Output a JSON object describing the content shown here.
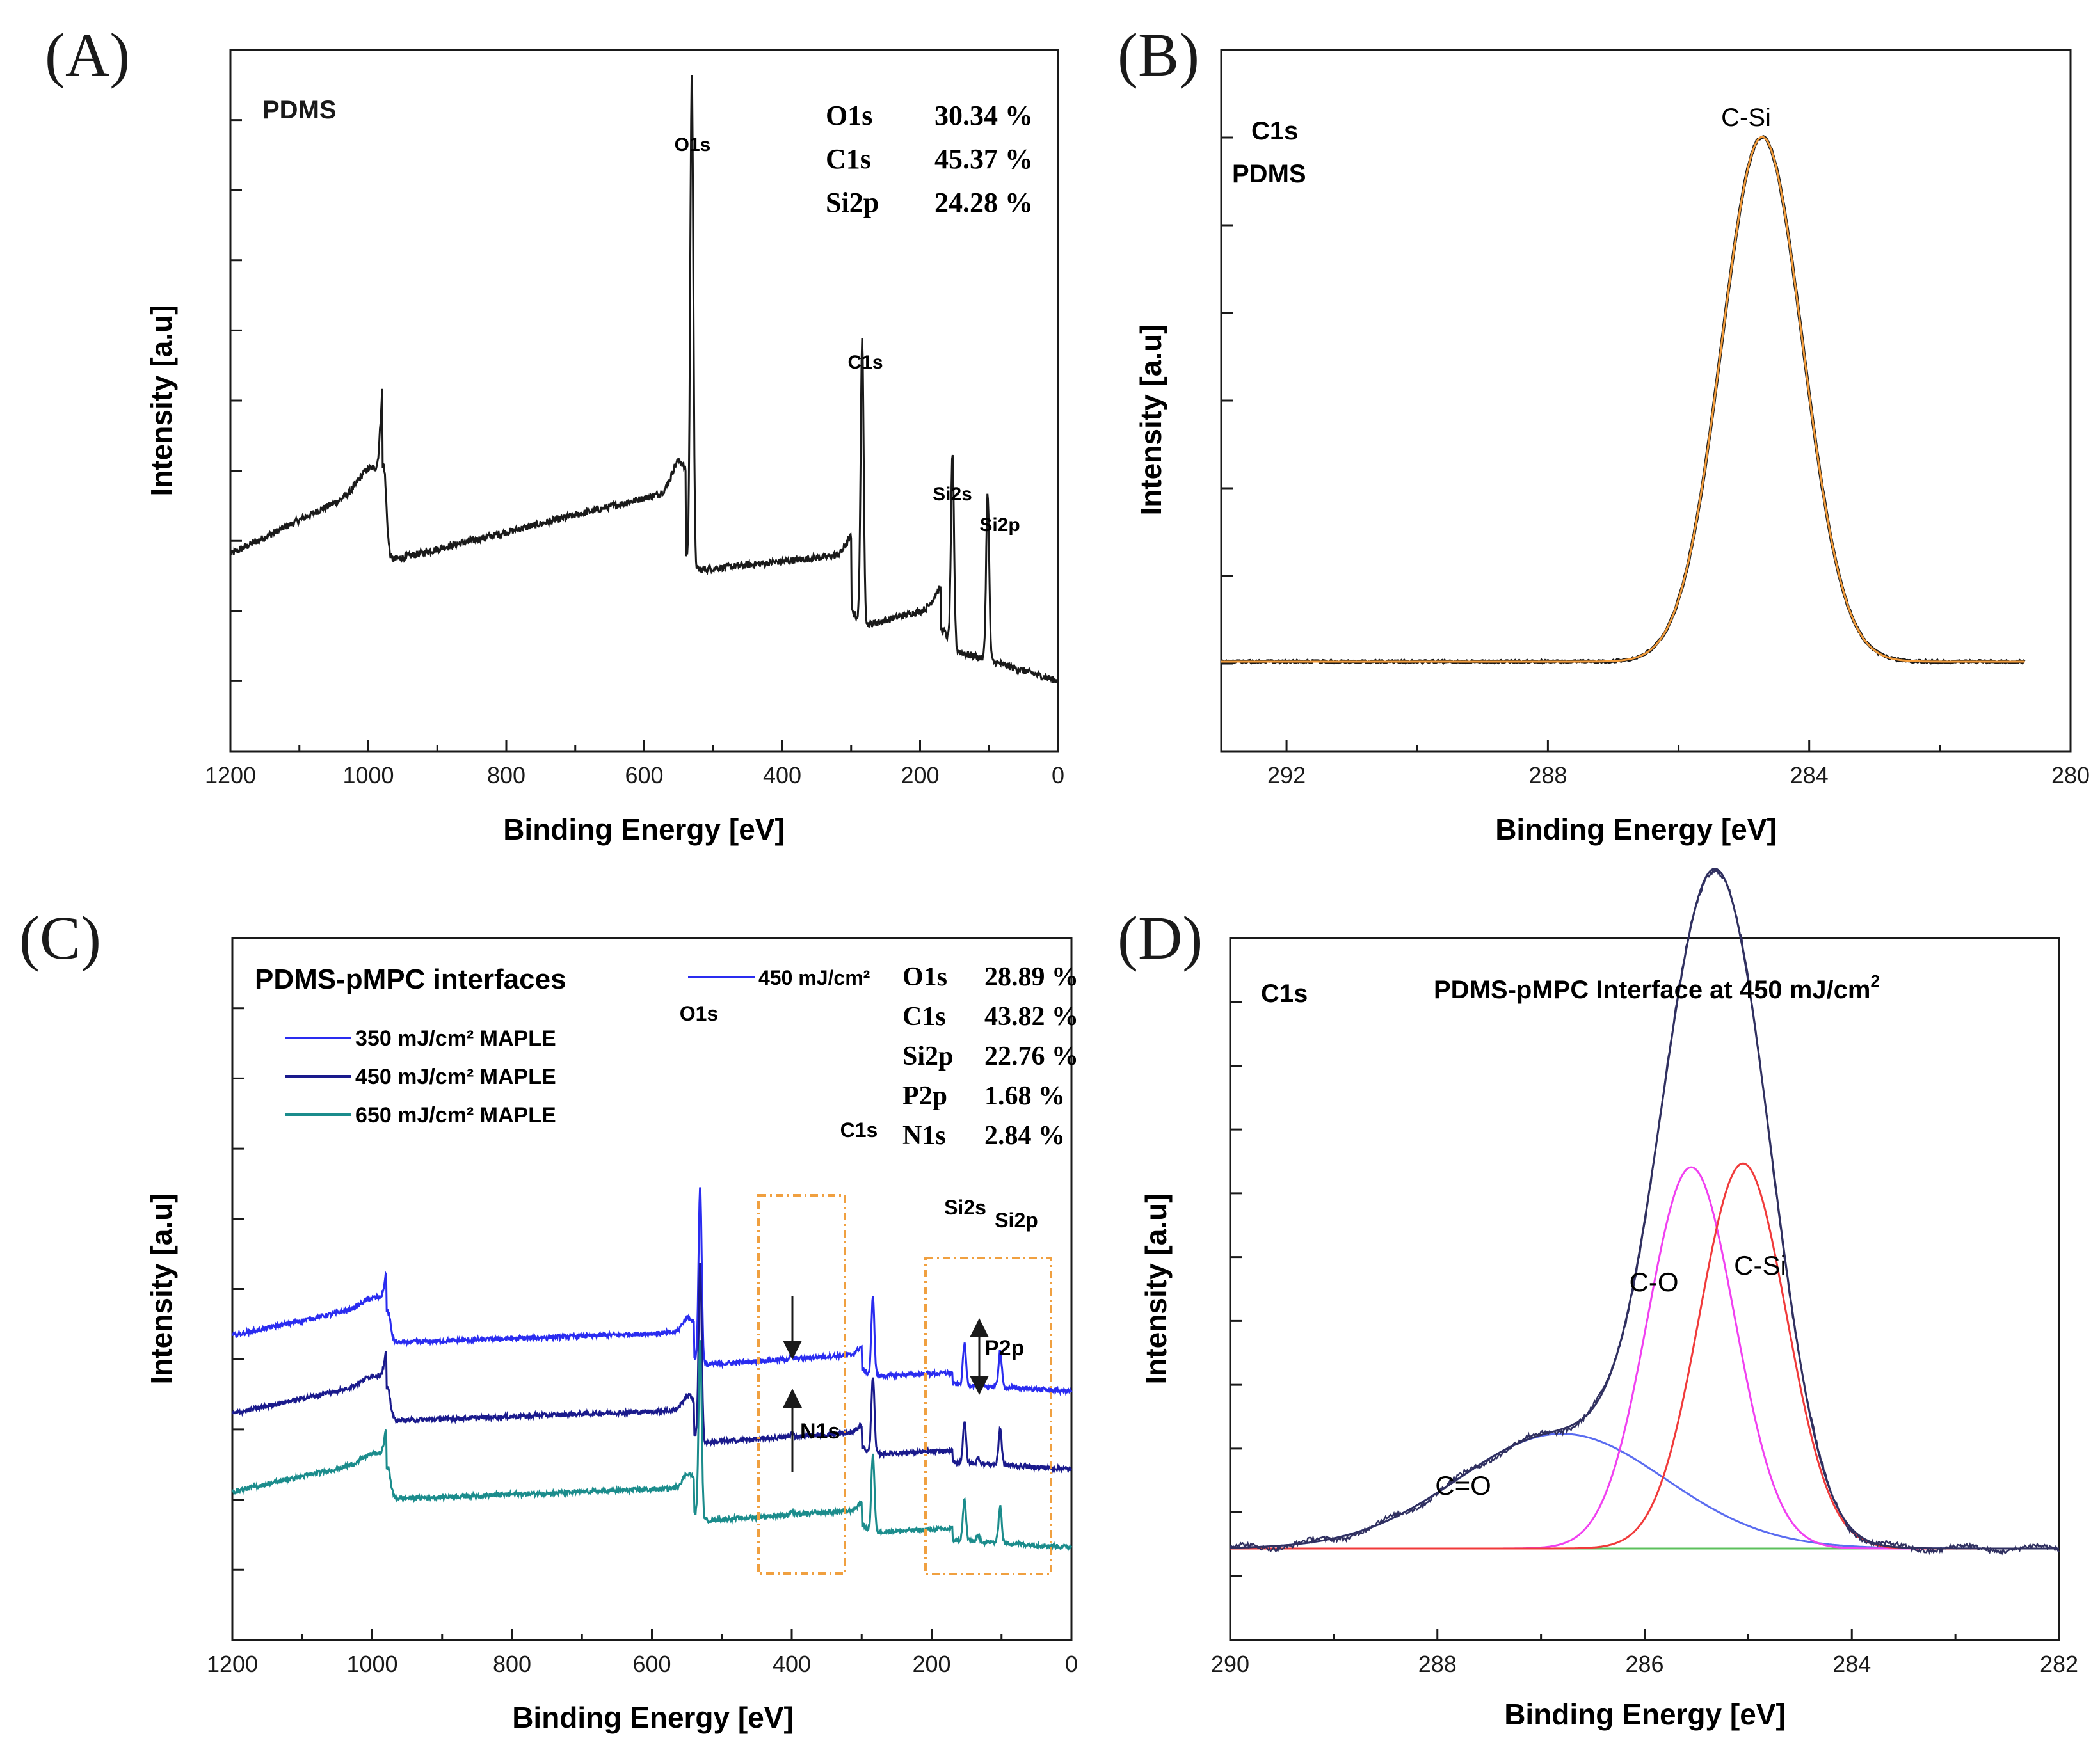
{
  "colors": {
    "black": "#1a1a1a",
    "fit_orange": "#f39c3b",
    "s350": "#2a2cf0",
    "s450": "#1a1a8c",
    "s650": "#1b8c8c",
    "box": "#f0a040",
    "fit_blue": "#5a6cf0",
    "fit_magenta": "#f040f0",
    "fit_red": "#f03a3a",
    "fit_green": "#5cc05c",
    "envelope": "#303060"
  },
  "chart_data": [
    {
      "id": "A",
      "type": "line",
      "panel_label": "(A)",
      "xlabel": "Binding Energy [eV]",
      "ylabel": "Intensity [a.u]",
      "xlim": [
        1200,
        0
      ],
      "xticks": [
        "1200",
        "1000",
        "800",
        "600",
        "400",
        "200",
        "0"
      ],
      "sample_label": "PDMS",
      "composition": [
        {
          "element": "O1s",
          "value": "30.34 %"
        },
        {
          "element": "C1s",
          "value": "45.37 %"
        },
        {
          "element": "Si2p",
          "value": "24.28 %"
        }
      ],
      "peaks": [
        {
          "label": "O1s",
          "x": 531,
          "height": 0.86
        },
        {
          "label": "C1s",
          "x": 284,
          "height": 0.49
        },
        {
          "label": "Si2s",
          "x": 153,
          "height": 0.33
        },
        {
          "label": "Si2p",
          "x": 102,
          "height": 0.29
        }
      ]
    },
    {
      "id": "B",
      "type": "line",
      "panel_label": "(B)",
      "xlabel": "Binding Energy [eV]",
      "ylabel": "Intensity [a.u]",
      "xlim": [
        293,
        280
      ],
      "xticks": [
        "292",
        "288",
        "284",
        "280"
      ],
      "labels": [
        "C1s",
        "PDMS"
      ],
      "peaks": [
        {
          "label": "C-Si",
          "x": 284.7
        }
      ]
    },
    {
      "id": "C",
      "type": "line",
      "panel_label": "(C)",
      "xlabel": "Binding Energy [eV]",
      "ylabel": "Intensity [a.u]",
      "xlim": [
        1200,
        0
      ],
      "xticks": [
        "1200",
        "1000",
        "800",
        "600",
        "400",
        "200",
        "0"
      ],
      "title": "PDMS-pMPC interfaces",
      "series": [
        {
          "name": "350 mJ/cm² MAPLE",
          "offset": 0.42
        },
        {
          "name": "450 mJ/cm² MAPLE",
          "offset": 0.21
        },
        {
          "name": "650 mJ/cm² MAPLE",
          "offset": 0.0
        }
      ],
      "composition_legend": "450 mJ/cm²",
      "composition": [
        {
          "element": "O1s",
          "value": "28.89 %"
        },
        {
          "element": "C1s",
          "value": "43.82 %"
        },
        {
          "element": "Si2p",
          "value": "22.76 %"
        },
        {
          "element": "P2p",
          "value": "1.68 %"
        },
        {
          "element": "N1s",
          "value": "2.84 %"
        }
      ],
      "peak_labels": [
        "O1s",
        "C1s",
        "Si2s",
        "Si2p"
      ],
      "annotations": [
        "N1s",
        "P2p"
      ]
    },
    {
      "id": "D",
      "type": "line",
      "panel_label": "(D)",
      "xlabel": "Binding Energy [eV]",
      "ylabel": "Intensity [a.u]",
      "xlim": [
        290,
        282
      ],
      "xticks": [
        "290",
        "288",
        "286",
        "284",
        "282"
      ],
      "region": "C1s",
      "title": "PDMS-pMPC Interface at 450 mJ/cm",
      "title_sup": "2",
      "components": [
        {
          "label": "C=O",
          "center": 286.8,
          "height": 0.152,
          "sigma": 1.0
        },
        {
          "label": "C-O",
          "center": 285.55,
          "height": 0.505,
          "sigma": 0.42
        },
        {
          "label": "C-Si",
          "center": 285.05,
          "height": 0.51,
          "sigma": 0.42
        }
      ]
    }
  ]
}
